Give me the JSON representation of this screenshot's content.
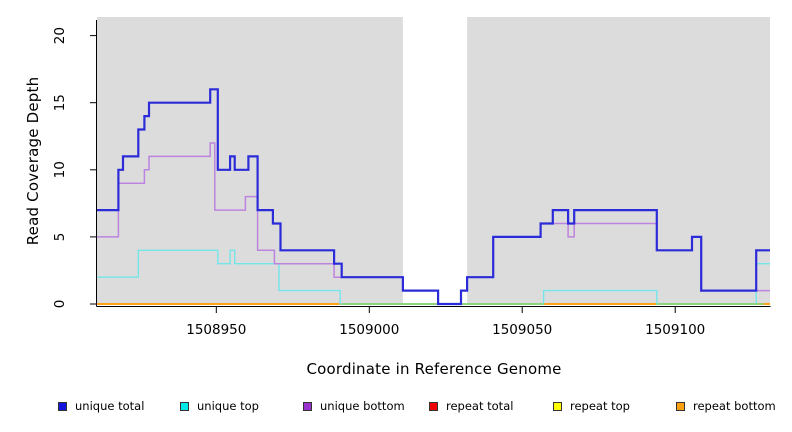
{
  "figure": {
    "panel_bg": "#DCDCDC",
    "gap_band_color": "#FFFFFF",
    "axis_color": "#000000"
  },
  "legend": {
    "items": [
      {
        "label": "unique total",
        "legend_color": "#1414DF",
        "line_color": "#2B2BD9",
        "width": 2.2
      },
      {
        "label": "unique top",
        "legend_color": "#00E8E8",
        "line_color": "#74E6EA",
        "width": 1.4
      },
      {
        "label": "unique bottom",
        "legend_color": "#9932CC",
        "line_color": "#BC84DF",
        "width": 1.5
      },
      {
        "label": "repeat total",
        "legend_color": "#EE0000",
        "line_color": "#EE0000",
        "width": 1.4
      },
      {
        "label": "repeat top",
        "legend_color": "#FFFF00",
        "line_color": "#FFFF00",
        "width": 1.4
      },
      {
        "label": "repeat bottom",
        "legend_color": "#FFA010",
        "line_color": "#FFA013",
        "width": 1.8
      }
    ]
  },
  "chart_data": {
    "type": "line",
    "subtype": "step",
    "title": "",
    "xlabel": "Coordinate in Reference Genome",
    "ylabel": "Read Coverage Depth",
    "xlim": [
      1508911,
      1509131
    ],
    "ylim": [
      0,
      21.5
    ],
    "x_ticks": [
      1508950,
      1509000,
      1509050,
      1509100
    ],
    "y_ticks": [
      0,
      5,
      10,
      15,
      20
    ],
    "grid": false,
    "legend_position": "bottom",
    "gap_band": {
      "from": 1509011,
      "to": 1509032
    },
    "series": [
      {
        "name": "unique total",
        "points": [
          [
            1508911,
            7
          ],
          [
            1508918,
            10
          ],
          [
            1508919.5,
            11
          ],
          [
            1508924.5,
            13
          ],
          [
            1508926.5,
            14
          ],
          [
            1508928,
            15
          ],
          [
            1508948,
            16
          ],
          [
            1508950.5,
            10
          ],
          [
            1508954.5,
            11
          ],
          [
            1508956,
            10
          ],
          [
            1508960.5,
            11
          ],
          [
            1508963.5,
            7
          ],
          [
            1508968.5,
            6
          ],
          [
            1508971,
            4
          ],
          [
            1508988.5,
            3
          ],
          [
            1508991,
            2
          ],
          [
            1509011,
            1
          ],
          [
            1509022.5,
            0
          ],
          [
            1509030,
            1
          ],
          [
            1509032,
            2
          ],
          [
            1509040.5,
            5
          ],
          [
            1509056,
            6
          ],
          [
            1509060,
            7
          ],
          [
            1509065,
            6
          ],
          [
            1509067,
            7
          ],
          [
            1509094,
            4
          ],
          [
            1509105.5,
            5
          ],
          [
            1509108.5,
            1
          ],
          [
            1509126.5,
            4
          ]
        ]
      },
      {
        "name": "unique top",
        "points": [
          [
            1508911,
            2
          ],
          [
            1508924.5,
            4
          ],
          [
            1508950.5,
            3
          ],
          [
            1508954.5,
            4
          ],
          [
            1508956,
            3
          ],
          [
            1508970.5,
            1
          ],
          [
            1508990.5,
            0
          ],
          [
            1509057,
            1
          ],
          [
            1509094,
            0
          ],
          [
            1509126.5,
            3
          ]
        ]
      },
      {
        "name": "unique bottom",
        "points": [
          [
            1508911,
            5
          ],
          [
            1508918,
            9
          ],
          [
            1508926.5,
            10
          ],
          [
            1508928,
            11
          ],
          [
            1508948,
            12
          ],
          [
            1508949.5,
            7
          ],
          [
            1508959.5,
            8
          ],
          [
            1508963.5,
            4
          ],
          [
            1508969,
            3
          ],
          [
            1508988.5,
            2
          ],
          [
            1509011,
            1
          ],
          [
            1509022.5,
            0
          ],
          [
            1509030,
            1
          ],
          [
            1509032,
            2
          ],
          [
            1509040.5,
            5
          ],
          [
            1509056,
            6
          ],
          [
            1509065,
            5
          ],
          [
            1509067,
            6
          ],
          [
            1509094,
            4
          ],
          [
            1509105.5,
            5
          ],
          [
            1509108.5,
            1
          ]
        ]
      },
      {
        "name": "repeat total",
        "points": [
          [
            1508911,
            0
          ]
        ]
      },
      {
        "name": "repeat top",
        "points": [
          [
            1508911,
            0
          ]
        ]
      },
      {
        "name": "repeat bottom",
        "points": [
          [
            1508911,
            0
          ]
        ]
      }
    ],
    "baseline_overlap_segments": {
      "color": "#7FD87F",
      "note": "baseline appears green where unique-top at 0 blends over repeat lines",
      "segments": [
        [
          1508991,
          1509057
        ],
        [
          1509094,
          1509129
        ]
      ]
    }
  }
}
